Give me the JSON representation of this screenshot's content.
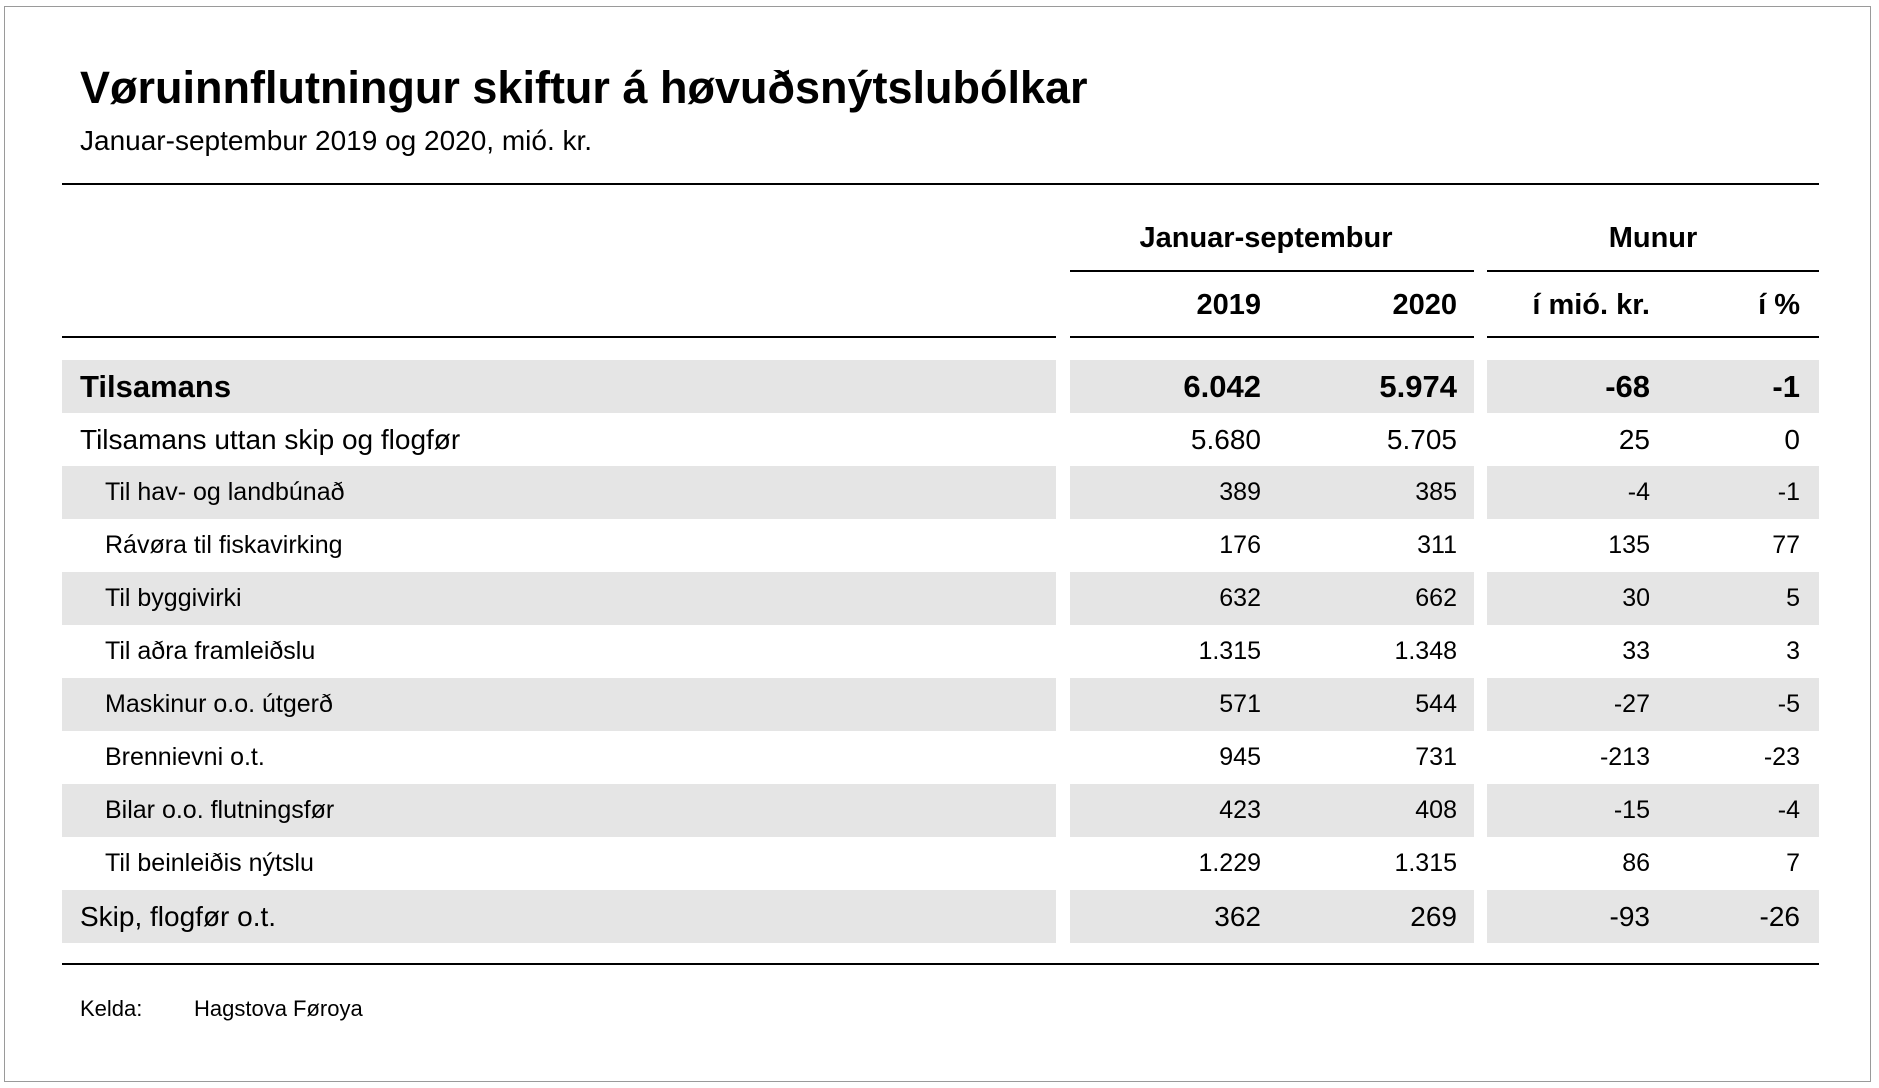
{
  "title": "Vøruinnflutningur skiftur á høvuðsnýtslubólkar",
  "subtitle": "Januar-septembur 2019 og 2020, mió. kr.",
  "header": {
    "group_period": "Januar-septembur",
    "group_diff": "Munur",
    "col_2019": "2019",
    "col_2020": "2020",
    "col_diff_amount": "í mió. kr.",
    "col_diff_pct": "í %"
  },
  "chart_data": {
    "type": "table",
    "title": "Vøruinnflutningur skiftur á høvuðsnýtslubólkar",
    "subtitle": "Januar-septembur 2019 og 2020, mió. kr.",
    "columns": [
      "2019",
      "2020",
      "í mió. kr.",
      "í %"
    ],
    "rows": [
      {
        "label": "Tilsamans",
        "values": [
          "6.042",
          "5.974",
          "-68",
          "-1"
        ]
      },
      {
        "label": "Tilsamans uttan skip og flogfør",
        "values": [
          "5.680",
          "5.705",
          "25",
          "0"
        ]
      },
      {
        "label": "Til hav- og landbúnað",
        "values": [
          "389",
          "385",
          "-4",
          "-1"
        ]
      },
      {
        "label": "Rávøra til fiskavirking",
        "values": [
          "176",
          "311",
          "135",
          "77"
        ]
      },
      {
        "label": "Til byggivirki",
        "values": [
          "632",
          "662",
          "30",
          "5"
        ]
      },
      {
        "label": "Til aðra framleiðslu",
        "values": [
          "1.315",
          "1.348",
          "33",
          "3"
        ]
      },
      {
        "label": "Maskinur o.o. útgerð",
        "values": [
          "571",
          "544",
          "-27",
          "-5"
        ]
      },
      {
        "label": "Brennievni o.t.",
        "values": [
          "945",
          "731",
          "-213",
          "-23"
        ]
      },
      {
        "label": "Bilar o.o. flutningsfør",
        "values": [
          "423",
          "408",
          "-15",
          "-4"
        ]
      },
      {
        "label": "Til beinleiðis nýtslu",
        "values": [
          "1.229",
          "1.315",
          "86",
          "7"
        ]
      },
      {
        "label": "Skip, flogfør o.t.",
        "values": [
          "362",
          "269",
          "-93",
          "-26"
        ]
      }
    ]
  },
  "source": {
    "label": "Kelda:",
    "value": "Hagstova Føroya"
  },
  "colors": {
    "band": "#e5e5e5",
    "text": "#000000",
    "rule": "#000000"
  }
}
